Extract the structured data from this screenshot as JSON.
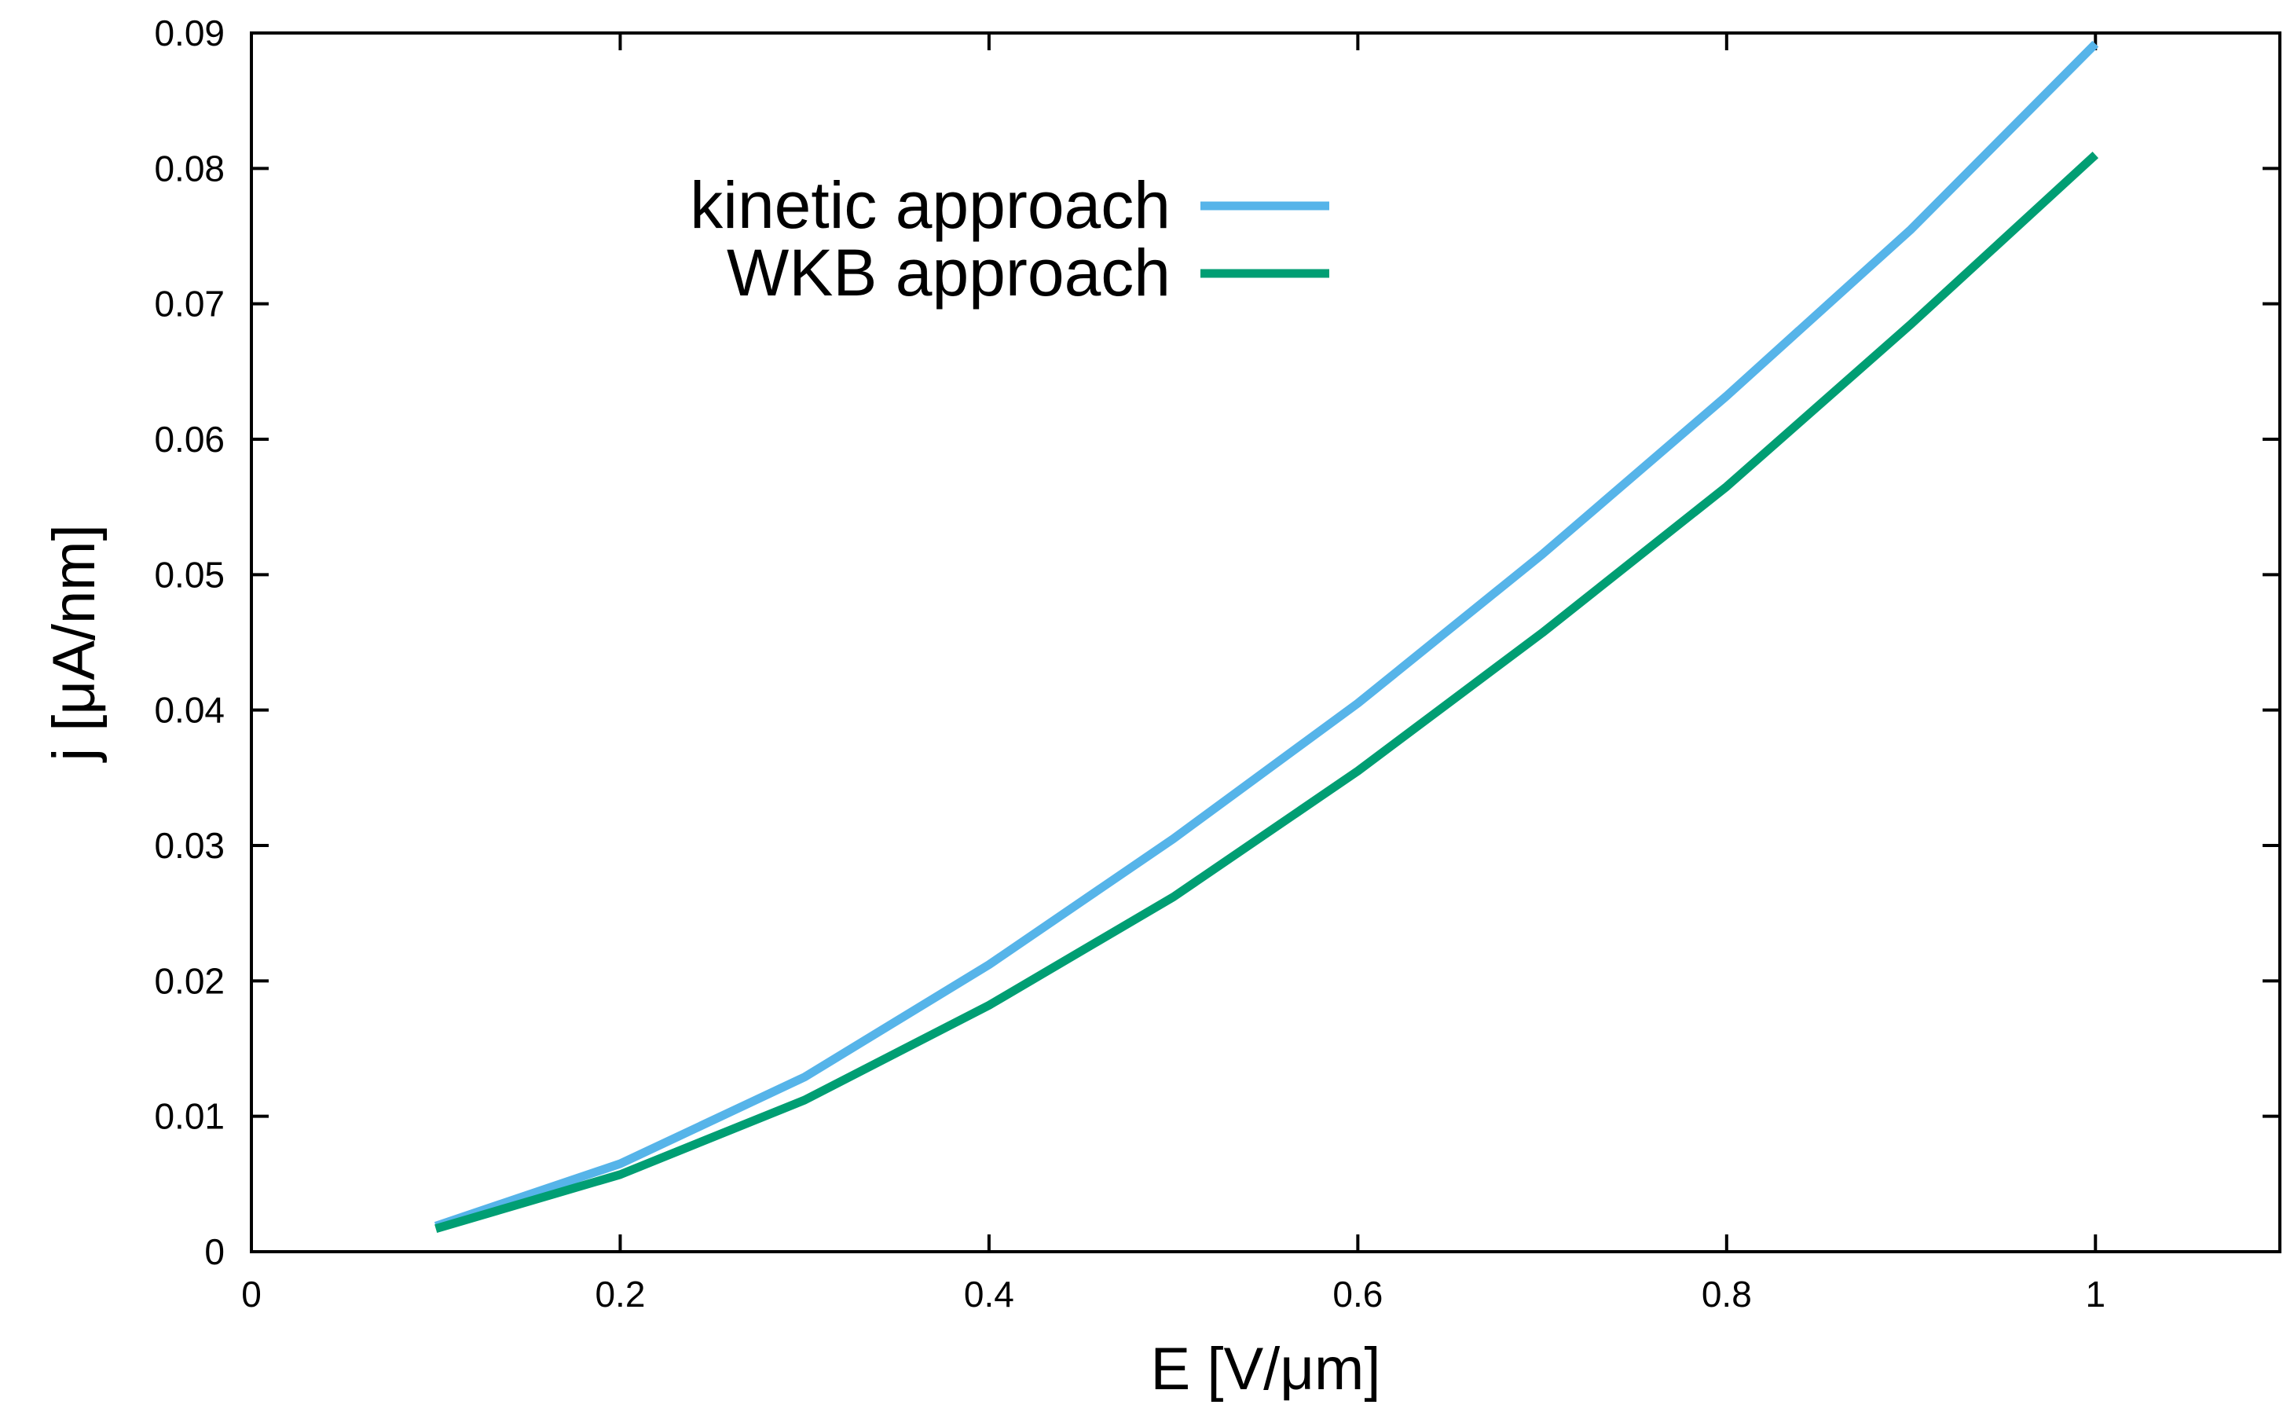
{
  "chart_data": {
    "type": "line",
    "title": "",
    "xlabel": "E [V/μm]",
    "ylabel": "j [μA/nm]",
    "xlim": [
      0,
      1.1
    ],
    "ylim": [
      0,
      0.09
    ],
    "xticks": [
      0,
      0.2,
      0.4,
      0.6,
      0.8,
      1.0
    ],
    "xtick_labels": [
      "0",
      "0.2",
      "0.4",
      "0.6",
      "0.8",
      "1"
    ],
    "yticks": [
      0,
      0.01,
      0.02,
      0.03,
      0.04,
      0.05,
      0.06,
      0.07,
      0.08,
      0.09
    ],
    "ytick_labels": [
      "0",
      "0.01",
      "0.02",
      "0.03",
      "0.04",
      "0.05",
      "0.06",
      "0.07",
      "0.08",
      "0.09"
    ],
    "grid": false,
    "legend_position": "top-left",
    "x": [
      0.1,
      0.2,
      0.3,
      0.4,
      0.5,
      0.6,
      0.7,
      0.8,
      0.9,
      1.0
    ],
    "series": [
      {
        "name": "kinetic approach",
        "color": "#56B4E9",
        "values": [
          0.0019,
          0.0065,
          0.0129,
          0.0212,
          0.0305,
          0.0405,
          0.0515,
          0.0632,
          0.0755,
          0.0892
        ]
      },
      {
        "name": "WKB approach",
        "color": "#009E73",
        "values": [
          0.0017,
          0.0057,
          0.0112,
          0.0182,
          0.0262,
          0.0355,
          0.0457,
          0.0565,
          0.0685,
          0.081
        ]
      }
    ]
  }
}
